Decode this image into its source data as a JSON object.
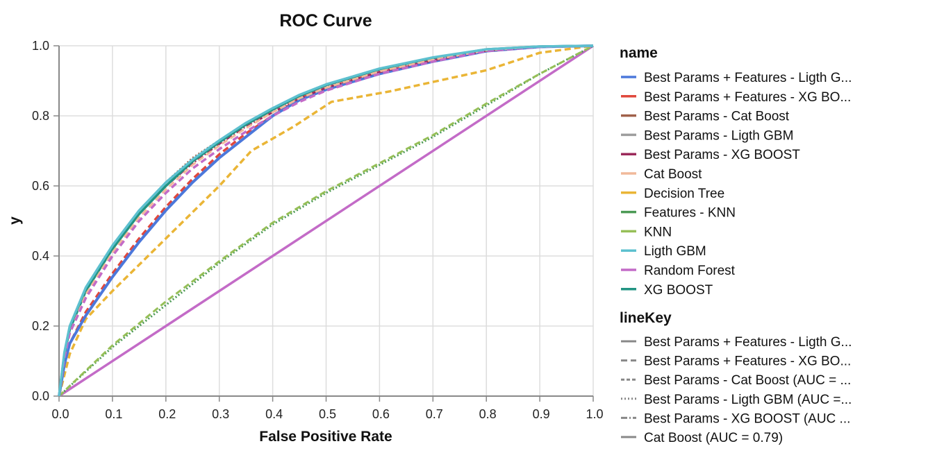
{
  "chart_data": {
    "type": "line",
    "title": "ROC Curve",
    "xlabel": "False Positive Rate",
    "ylabel": "y",
    "xlim": [
      0,
      1
    ],
    "ylim": [
      0,
      1
    ],
    "x_ticks": [
      "0.0",
      "0.1",
      "0.2",
      "0.3",
      "0.4",
      "0.5",
      "0.6",
      "0.7",
      "0.8",
      "0.9",
      "1.0"
    ],
    "y_ticks": [
      "0.0",
      "0.2",
      "0.4",
      "0.6",
      "0.8",
      "1.0"
    ],
    "grid": true,
    "legend_placement": "right",
    "colors": {
      "blue": "#4c78db",
      "red": "#e0483d",
      "brown": "#a0614a",
      "gray": "#9e9e9e",
      "maroon": "#9b2a5a",
      "peach": "#f1b99a",
      "gold": "#eab536",
      "green": "#4c9a55",
      "olive": "#96bf57",
      "cyan": "#5dc0cf",
      "orchid": "#c36bc7",
      "teal": "#229483",
      "legend_gray": "#888888",
      "grid": "#dddddd",
      "axis": "#888888"
    },
    "legend_name": {
      "title": "name",
      "entries": [
        {
          "label": "Best Params + Features - Ligth G...",
          "color": "#4c78db"
        },
        {
          "label": "Best Params + Features - XG BO...",
          "color": "#e0483d"
        },
        {
          "label": "Best Params - Cat Boost",
          "color": "#a0614a"
        },
        {
          "label": "Best Params - Ligth GBM",
          "color": "#9e9e9e"
        },
        {
          "label": "Best Params - XG BOOST",
          "color": "#9b2a5a"
        },
        {
          "label": "Cat Boost",
          "color": "#f1b99a"
        },
        {
          "label": "Decision Tree",
          "color": "#eab536"
        },
        {
          "label": "Features - KNN",
          "color": "#4c9a55"
        },
        {
          "label": "KNN",
          "color": "#96bf57"
        },
        {
          "label": "Ligth GBM",
          "color": "#5dc0cf"
        },
        {
          "label": "Random Forest",
          "color": "#c36bc7"
        },
        {
          "label": "XG BOOST",
          "color": "#229483"
        }
      ]
    },
    "legend_linekey": {
      "title": "lineKey",
      "entries": [
        {
          "label": "Best Params + Features - Ligth G...",
          "dash": "solid"
        },
        {
          "label": "Best Params + Features - XG BO...",
          "dash": "dashed"
        },
        {
          "label": "Best Params - Cat Boost (AUC = ...",
          "dash": "short-dashed"
        },
        {
          "label": "Best Params - Ligth GBM (AUC =...",
          "dash": "dotted"
        },
        {
          "label": "Best Params - XG BOOST (AUC ...",
          "dash": "dash-dot"
        },
        {
          "label": "Cat Boost (AUC = 0.79)",
          "dash": "solid"
        }
      ]
    },
    "series": [
      {
        "name": "Random Forest",
        "color": "#c36bc7",
        "dash": "solid",
        "width": 3.5,
        "x": [
          0,
          1
        ],
        "y": [
          0,
          1
        ]
      },
      {
        "name": "Features - KNN",
        "color": "#4c9a55",
        "dash": "dotted",
        "width": 3,
        "x": [
          0,
          0.1,
          0.2,
          0.3,
          0.4,
          0.5,
          0.6,
          0.7,
          0.8,
          0.9,
          1.0
        ],
        "y": [
          0,
          0.14,
          0.26,
          0.38,
          0.49,
          0.58,
          0.66,
          0.74,
          0.83,
          0.92,
          1.0
        ]
      },
      {
        "name": "KNN",
        "color": "#96bf57",
        "dash": "dashed",
        "width": 3,
        "x": [
          0,
          0.1,
          0.2,
          0.3,
          0.4,
          0.5,
          0.6,
          0.7,
          0.8,
          0.9,
          1.0
        ],
        "y": [
          0,
          0.145,
          0.27,
          0.385,
          0.495,
          0.585,
          0.665,
          0.745,
          0.835,
          0.92,
          1.0
        ]
      },
      {
        "name": "Decision Tree",
        "color": "#eab536",
        "dash": "dashed",
        "width": 3.5,
        "x": [
          0,
          0.01,
          0.02,
          0.05,
          0.1,
          0.2,
          0.3,
          0.36,
          0.44,
          0.51,
          0.62,
          0.8,
          0.9,
          1.0
        ],
        "y": [
          0,
          0.06,
          0.12,
          0.22,
          0.3,
          0.45,
          0.6,
          0.7,
          0.77,
          0.84,
          0.87,
          0.93,
          0.98,
          1.0
        ]
      },
      {
        "name": "Best Params + Features - XG BO...",
        "color": "#e0483d",
        "dash": "dashed",
        "width": 3.5,
        "x": [
          0,
          0.01,
          0.02,
          0.05,
          0.1,
          0.15,
          0.2,
          0.25,
          0.3,
          0.35,
          0.4,
          0.45,
          0.5,
          0.6,
          0.7,
          0.8,
          0.9,
          1.0
        ],
        "y": [
          0,
          0.09,
          0.15,
          0.24,
          0.35,
          0.45,
          0.54,
          0.62,
          0.69,
          0.75,
          0.8,
          0.85,
          0.88,
          0.925,
          0.955,
          0.985,
          0.997,
          1.0
        ]
      },
      {
        "name": "Best Params + Features - Ligth G...",
        "color": "#4c78db",
        "dash": "solid",
        "width": 4,
        "x": [
          0,
          0.01,
          0.02,
          0.05,
          0.1,
          0.15,
          0.2,
          0.25,
          0.3,
          0.35,
          0.4,
          0.45,
          0.5,
          0.6,
          0.7,
          0.8,
          0.9,
          1.0
        ],
        "y": [
          0,
          0.09,
          0.15,
          0.23,
          0.34,
          0.44,
          0.53,
          0.61,
          0.68,
          0.74,
          0.8,
          0.845,
          0.875,
          0.92,
          0.955,
          0.985,
          0.997,
          1.0
        ]
      },
      {
        "name": "Best Params - Cat Boost",
        "color": "#a0614a",
        "dash": "dotted",
        "width": 3,
        "x": [
          0,
          0.01,
          0.02,
          0.05,
          0.1,
          0.15,
          0.2,
          0.25,
          0.3,
          0.35,
          0.4,
          0.45,
          0.5,
          0.6,
          0.7,
          0.8,
          0.9,
          1.0
        ],
        "y": [
          0,
          0.12,
          0.19,
          0.3,
          0.43,
          0.53,
          0.61,
          0.68,
          0.73,
          0.78,
          0.82,
          0.86,
          0.89,
          0.935,
          0.965,
          0.99,
          0.998,
          1.0
        ]
      },
      {
        "name": "Best Params - Ligth GBM",
        "color": "#9e9e9e",
        "dash": "dotted",
        "width": 3,
        "x": [
          0,
          0.01,
          0.02,
          0.05,
          0.1,
          0.15,
          0.2,
          0.25,
          0.3,
          0.35,
          0.4,
          0.45,
          0.5,
          0.6,
          0.7,
          0.8,
          0.9,
          1.0
        ],
        "y": [
          0,
          0.12,
          0.19,
          0.3,
          0.42,
          0.52,
          0.6,
          0.67,
          0.725,
          0.775,
          0.815,
          0.855,
          0.885,
          0.93,
          0.962,
          0.988,
          0.998,
          1.0
        ]
      },
      {
        "name": "Best Params - XG BOOST",
        "color": "#9b2a5a",
        "dash": "dashdot",
        "width": 3,
        "x": [
          0,
          0.01,
          0.02,
          0.05,
          0.1,
          0.15,
          0.2,
          0.25,
          0.3,
          0.35,
          0.4,
          0.45,
          0.5,
          0.6,
          0.7,
          0.8,
          0.9,
          1.0
        ],
        "y": [
          0,
          0.12,
          0.19,
          0.3,
          0.42,
          0.52,
          0.6,
          0.665,
          0.72,
          0.77,
          0.81,
          0.85,
          0.88,
          0.925,
          0.958,
          0.986,
          0.998,
          1.0
        ]
      },
      {
        "name": "XG BOOST",
        "color": "#229483",
        "dash": "solid",
        "width": 3.5,
        "x": [
          0,
          0.01,
          0.02,
          0.05,
          0.1,
          0.15,
          0.2,
          0.25,
          0.3,
          0.35,
          0.4,
          0.45,
          0.5,
          0.6,
          0.7,
          0.8,
          0.9,
          1.0
        ],
        "y": [
          0,
          0.12,
          0.19,
          0.3,
          0.42,
          0.52,
          0.6,
          0.67,
          0.725,
          0.775,
          0.818,
          0.857,
          0.888,
          0.933,
          0.965,
          0.99,
          0.998,
          1.0
        ]
      },
      {
        "name": "Cat Boost",
        "color": "#f1b99a",
        "dash": "dashed",
        "width": 3,
        "x": [
          0,
          0.01,
          0.02,
          0.05,
          0.1,
          0.15,
          0.2,
          0.25,
          0.3,
          0.35,
          0.4,
          0.45,
          0.5,
          0.6,
          0.7,
          0.8,
          0.9,
          1.0
        ],
        "y": [
          0,
          0.11,
          0.18,
          0.29,
          0.41,
          0.51,
          0.59,
          0.66,
          0.715,
          0.765,
          0.81,
          0.85,
          0.88,
          0.927,
          0.96,
          0.987,
          0.998,
          1.0
        ]
      },
      {
        "name": "Random Forest",
        "color": "#c36bc7",
        "dash": "dashed",
        "width": 3.5,
        "x": [
          0,
          0.01,
          0.02,
          0.05,
          0.1,
          0.15,
          0.2,
          0.25,
          0.3,
          0.35,
          0.4,
          0.45,
          0.5,
          0.6,
          0.7,
          0.8,
          0.9,
          1.0
        ],
        "y": [
          0,
          0.11,
          0.18,
          0.28,
          0.4,
          0.5,
          0.58,
          0.65,
          0.705,
          0.755,
          0.8,
          0.84,
          0.872,
          0.92,
          0.955,
          0.985,
          0.997,
          1.0
        ]
      },
      {
        "name": "Ligth GBM",
        "color": "#5dc0cf",
        "dash": "solid",
        "width": 3.5,
        "x": [
          0,
          0.01,
          0.02,
          0.05,
          0.1,
          0.15,
          0.2,
          0.25,
          0.3,
          0.35,
          0.4,
          0.45,
          0.5,
          0.6,
          0.7,
          0.8,
          0.9,
          1.0
        ],
        "y": [
          0,
          0.125,
          0.2,
          0.31,
          0.43,
          0.53,
          0.61,
          0.675,
          0.73,
          0.78,
          0.822,
          0.86,
          0.89,
          0.935,
          0.967,
          0.99,
          0.998,
          1.0
        ]
      }
    ]
  }
}
